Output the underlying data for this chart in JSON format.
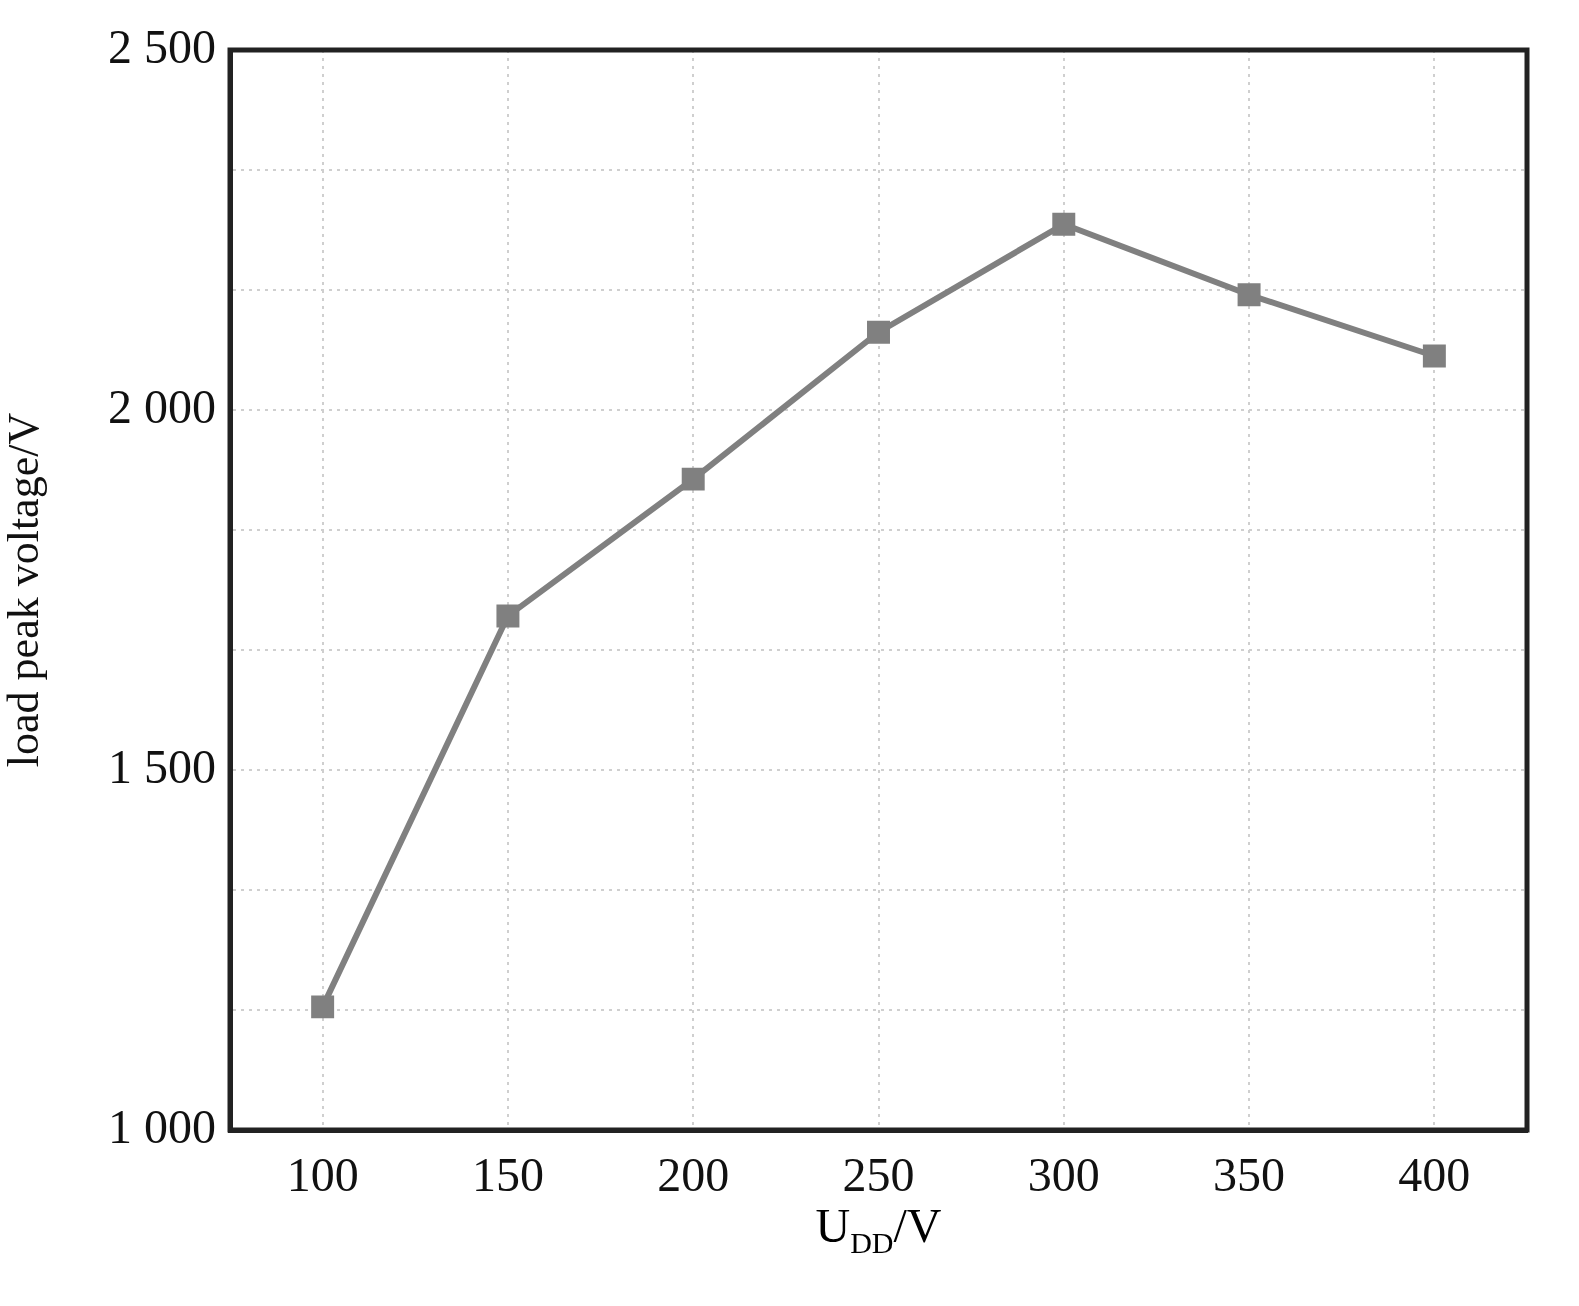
{
  "chart_data": {
    "type": "line",
    "xlabel": "U$_{DD}$/V",
    "ylabel": "load peak voltage/V",
    "x": [
      100,
      150,
      200,
      250,
      300,
      350,
      400
    ],
    "series": [
      {
        "color": "#808080",
        "values": [
          1171,
          1714,
          1904,
          2108,
          2258,
          2160,
          2075
        ]
      }
    ],
    "xlim": [
      75,
      425
    ],
    "xticks": [
      100,
      150,
      200,
      250,
      300,
      350,
      400
    ],
    "ylim": [
      1000,
      2500
    ],
    "yticks": [
      {
        "value": 1000,
        "label": "1 000"
      },
      {
        "value": 1166.67,
        "label": null
      },
      {
        "value": 1333.33,
        "label": null
      },
      {
        "value": 1500,
        "label": "1 500"
      },
      {
        "value": 1666.67,
        "label": null
      },
      {
        "value": 1833.33,
        "label": null
      },
      {
        "value": 2000,
        "label": "2 000"
      },
      {
        "value": 2166.67,
        "label": null
      },
      {
        "value": 2333.33,
        "label": null
      },
      {
        "value": 2500,
        "label": "2 500"
      }
    ],
    "grid": true,
    "marker": "square",
    "line_style": "solid"
  }
}
